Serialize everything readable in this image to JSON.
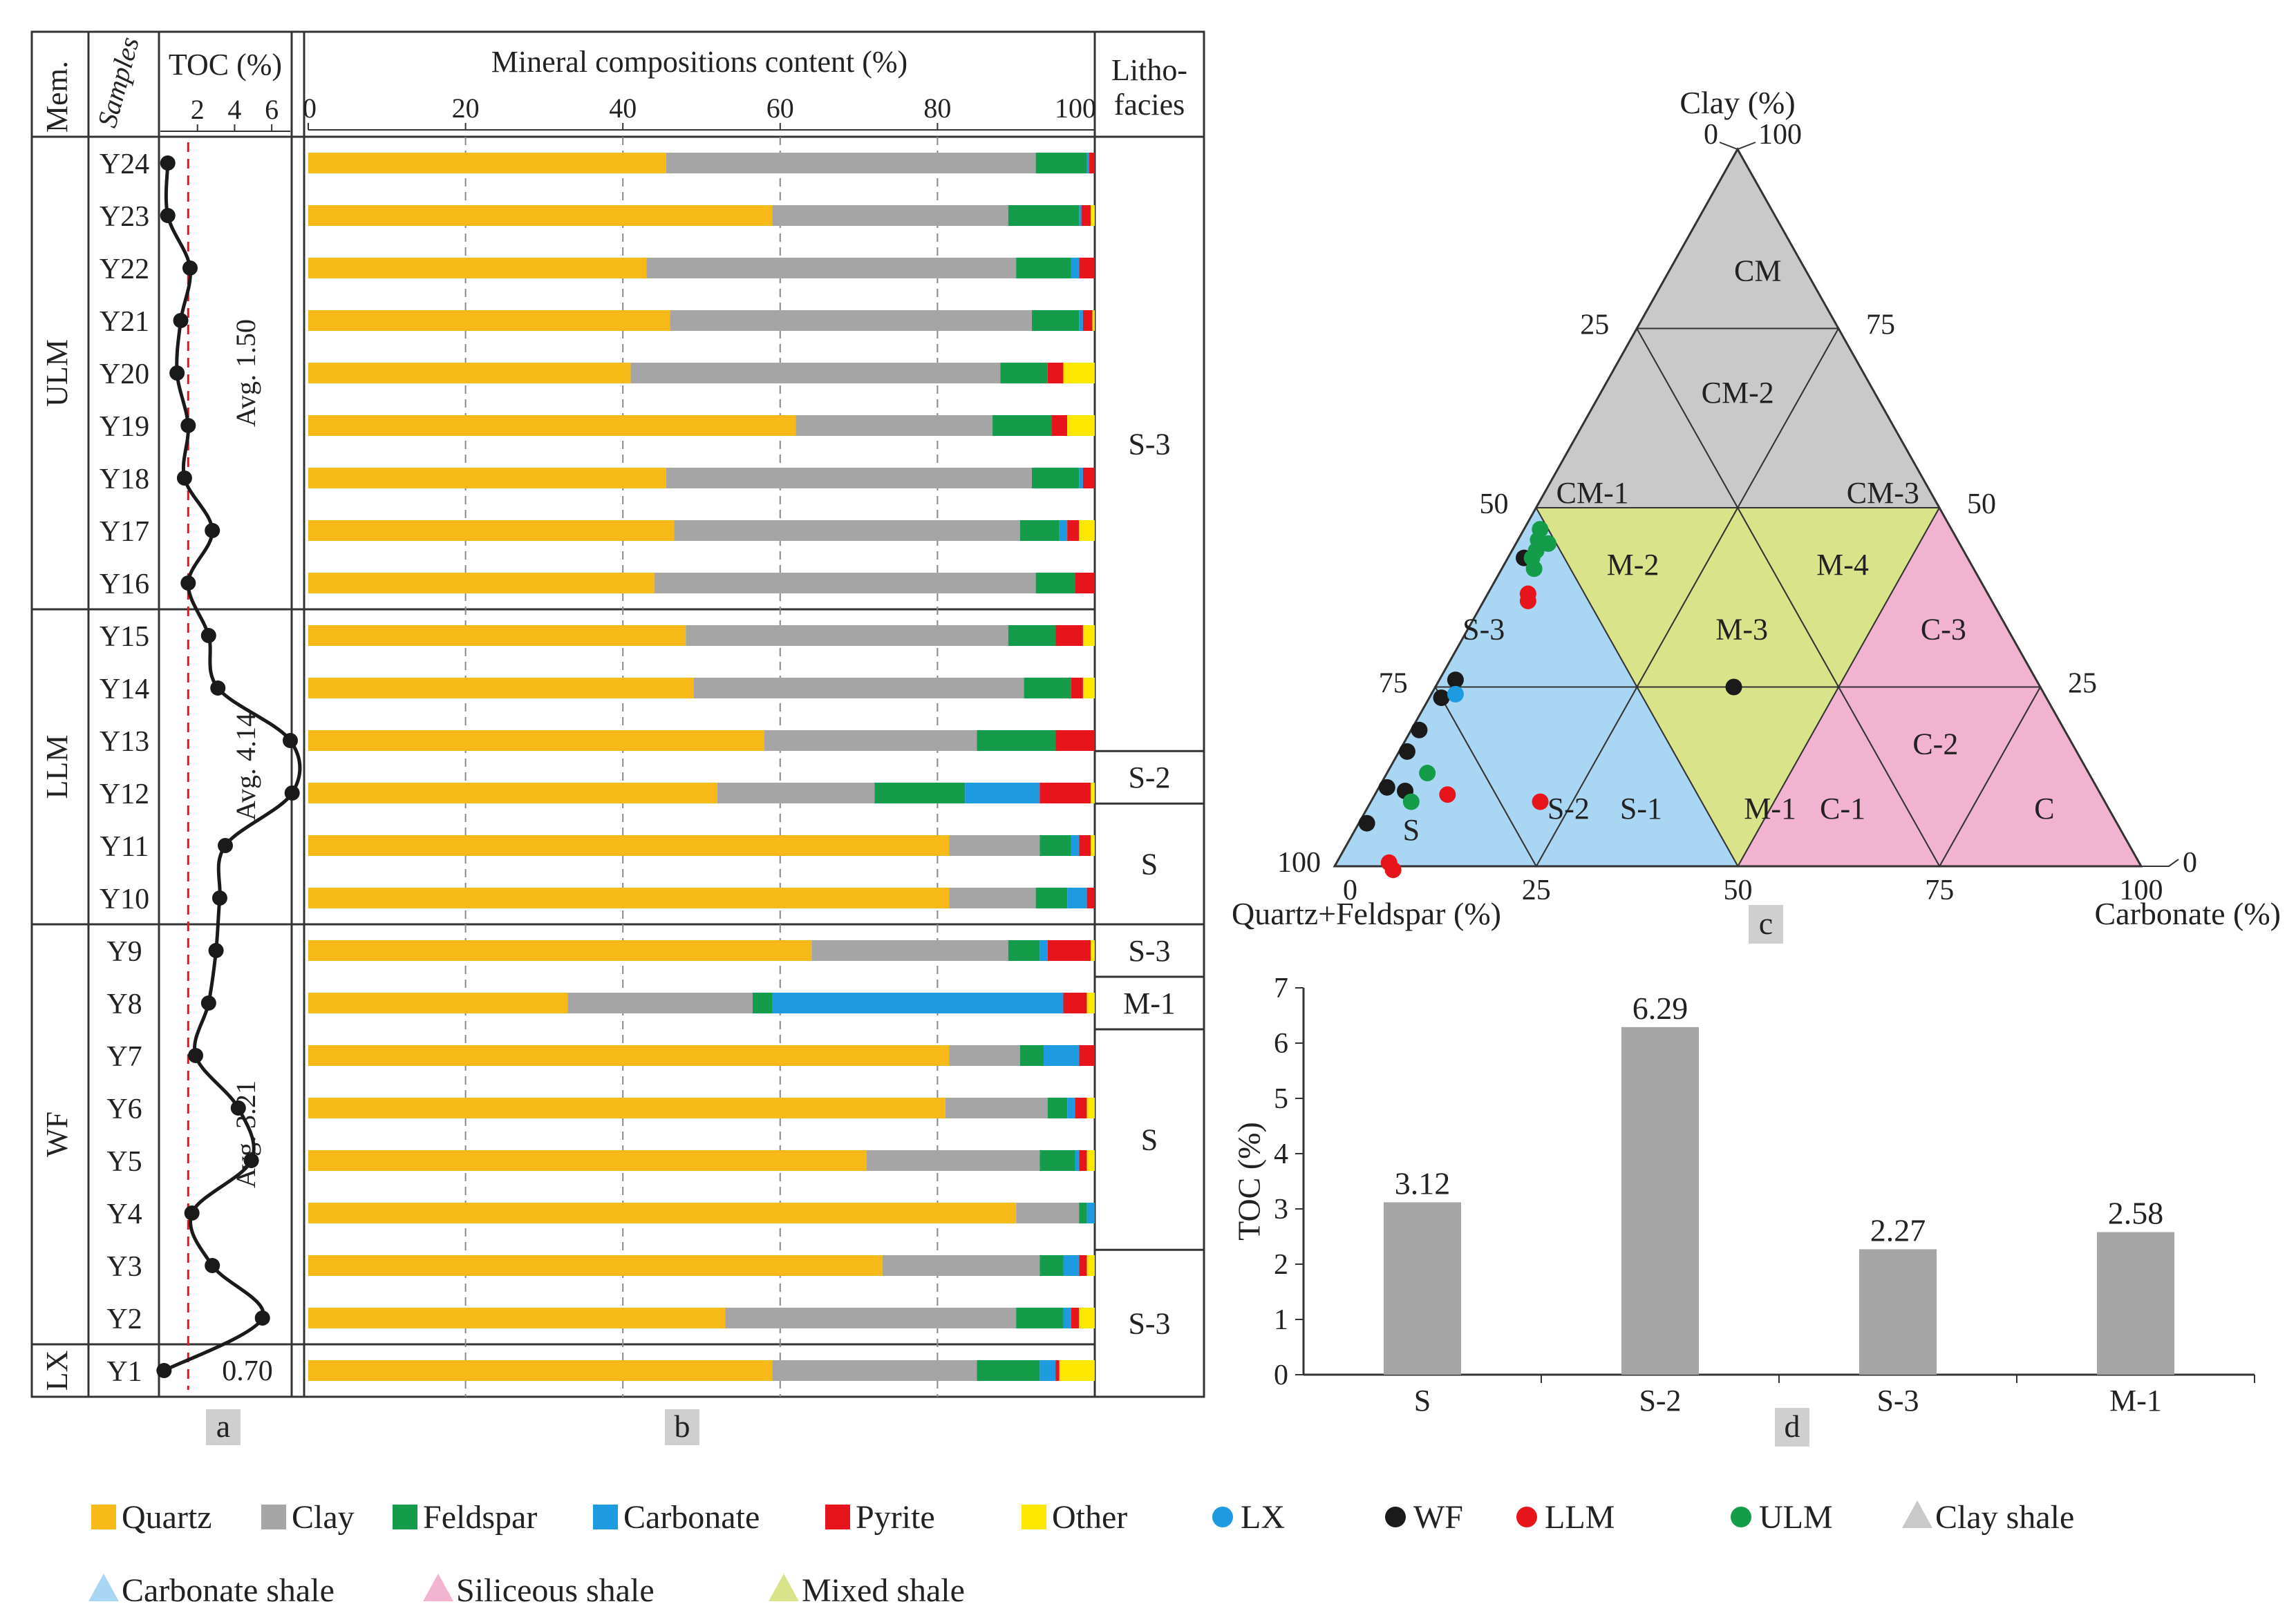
{
  "section_a": {
    "header_member": "Mem.",
    "header_samples": "Samples",
    "header_toc": "TOC (%)",
    "toc_ticks": [
      "2",
      "4",
      "6"
    ],
    "members": [
      {
        "label": "ULM",
        "first": 0,
        "last": 8
      },
      {
        "label": "LLM",
        "first": 9,
        "last": 14
      },
      {
        "label": "WF",
        "first": 15,
        "last": 22
      },
      {
        "label": "LX",
        "first": 23,
        "last": 23
      }
    ],
    "avg_labels": [
      {
        "text": "Avg. 1.50",
        "first": 0,
        "last": 8
      },
      {
        "text": "Avg. 4.14",
        "first": 9,
        "last": 14
      },
      {
        "text": "Avg. 3.21",
        "first": 15,
        "last": 22
      }
    ],
    "lx_value_label": "0.70",
    "dashed_line_toc": 1.5,
    "panel_label": "a"
  },
  "section_b": {
    "header": "Mineral compositions content (%)",
    "x_ticks": [
      "0",
      "20",
      "40",
      "60",
      "80",
      "100"
    ],
    "panel_label": "b"
  },
  "section_litho": {
    "header_line1": "Litho-",
    "header_line2": "facies",
    "groups": [
      {
        "label": "S-3",
        "first": 0,
        "last": 11.7
      },
      {
        "label": "S-2",
        "first": 11.7,
        "last": 12.7
      },
      {
        "label": "S",
        "first": 12.7,
        "last": 15
      },
      {
        "label": "S-3",
        "first": 15,
        "last": 16
      },
      {
        "label": "M-1",
        "first": 16,
        "last": 17
      },
      {
        "label": "S",
        "first": 17,
        "last": 21.2
      },
      {
        "label": "S-3",
        "first": 21.2,
        "last": 24
      }
    ]
  },
  "colors": {
    "quartz": "#f7b918",
    "clay": "#a5a5a5",
    "feldspar": "#159c4b",
    "carbonate": "#1d9ae0",
    "pyrite": "#e8141c",
    "other": "#ffe800",
    "lx": "#1d9ae0",
    "wf": "#1a1a1a",
    "llm": "#e8141c",
    "ulm": "#159c4b",
    "clay_shale": "#c9c9c9",
    "carbonate_shale": "#a9d6f2",
    "siliceous_shale": "#f2b3d0",
    "mixed_shale": "#d9e38a",
    "avg_line": "#e8141c"
  },
  "chart_data": [
    {
      "type": "line",
      "panel": "a",
      "title": "TOC (%)",
      "xlim": [
        0,
        7
      ],
      "x_ticks": [
        2,
        4,
        6
      ],
      "categories": [
        "Y24",
        "Y23",
        "Y22",
        "Y21",
        "Y20",
        "Y19",
        "Y18",
        "Y17",
        "Y16",
        "Y15",
        "Y14",
        "Y13",
        "Y12",
        "Y11",
        "Y10",
        "Y9",
        "Y8",
        "Y7",
        "Y6",
        "Y5",
        "Y4",
        "Y3",
        "Y2",
        "Y1"
      ],
      "values": [
        0.4,
        0.4,
        1.6,
        1.1,
        0.9,
        1.5,
        1.3,
        2.8,
        1.5,
        2.6,
        3.1,
        7.0,
        7.1,
        3.5,
        3.2,
        3.0,
        2.6,
        1.9,
        4.2,
        4.9,
        1.7,
        2.8,
        5.5,
        0.2
      ],
      "avg_values": [
        1.5,
        4.14,
        3.21,
        0.7
      ]
    },
    {
      "type": "bar",
      "panel": "b",
      "orientation": "horizontal",
      "stacked": true,
      "title": "Mineral compositions content (%)",
      "xlim": [
        0,
        100
      ],
      "categories": [
        "Y24",
        "Y23",
        "Y22",
        "Y21",
        "Y20",
        "Y19",
        "Y18",
        "Y17",
        "Y16",
        "Y15",
        "Y14",
        "Y13",
        "Y12",
        "Y11",
        "Y10",
        "Y9",
        "Y8",
        "Y7",
        "Y6",
        "Y5",
        "Y4",
        "Y3",
        "Y2",
        "Y1"
      ],
      "series": [
        {
          "name": "Quartz",
          "values": [
            45.5,
            59,
            43,
            46,
            41,
            62,
            45.5,
            46.5,
            44,
            48,
            49,
            58,
            52,
            81.5,
            81.5,
            64,
            33,
            81.5,
            81,
            71,
            90,
            73,
            53,
            59
          ]
        },
        {
          "name": "Clay",
          "values": [
            47,
            30,
            47,
            46,
            47,
            25,
            46.5,
            44,
            48.5,
            41,
            42,
            27,
            20,
            11.5,
            11,
            25,
            23.5,
            9,
            13,
            22,
            8,
            20,
            37,
            26
          ]
        },
        {
          "name": "Feldspar",
          "values": [
            6.5,
            9,
            7,
            6,
            6,
            7.5,
            6,
            5,
            5,
            6,
            6,
            10,
            11.5,
            4,
            4,
            4,
            2.5,
            3,
            2.5,
            4.5,
            1,
            3,
            6,
            8
          ]
        },
        {
          "name": "Carbonate",
          "values": [
            0.3,
            0.3,
            1,
            0.5,
            0,
            0,
            0.5,
            1,
            0,
            0,
            0,
            0,
            9.5,
            1,
            2.5,
            1,
            37,
            4.5,
            1,
            0.5,
            1,
            2,
            1,
            2
          ]
        },
        {
          "name": "Pyrite",
          "values": [
            0.7,
            1.2,
            2,
            1.2,
            2,
            2,
            1.5,
            1.5,
            2.5,
            3.5,
            1.5,
            5,
            6.5,
            1.5,
            1,
            5.5,
            3,
            2,
            1.5,
            1,
            0,
            1,
            1,
            0.5
          ]
        },
        {
          "name": "Other",
          "values": [
            0,
            0.5,
            0,
            0.3,
            4,
            3.5,
            0,
            2,
            0,
            1.5,
            1.5,
            0,
            0.5,
            0.5,
            0,
            0.5,
            1,
            0,
            1,
            1,
            0,
            1,
            2,
            4.5
          ]
        }
      ]
    },
    {
      "type": "scatter",
      "panel": "c",
      "subtype": "ternary",
      "axes": {
        "top": "Clay (%)",
        "left": "Quartz+Feldspar (%)",
        "right": "Carbonate (%)"
      },
      "edge_ticks": [
        "0",
        "25",
        "50",
        "75",
        "100"
      ],
      "regions": [
        {
          "label": "CM",
          "class": "clay_shale"
        },
        {
          "label": "CM-1",
          "class": "clay_shale"
        },
        {
          "label": "CM-2",
          "class": "clay_shale"
        },
        {
          "label": "CM-3",
          "class": "clay_shale"
        },
        {
          "label": "M-1",
          "class": "mixed_shale"
        },
        {
          "label": "M-2",
          "class": "mixed_shale"
        },
        {
          "label": "M-3",
          "class": "mixed_shale"
        },
        {
          "label": "M-4",
          "class": "mixed_shale"
        },
        {
          "label": "S",
          "class": "carbonate_shale"
        },
        {
          "label": "S-1",
          "class": "carbonate_shale"
        },
        {
          "label": "S-2",
          "class": "carbonate_shale"
        },
        {
          "label": "S-3",
          "class": "carbonate_shale"
        },
        {
          "label": "C",
          "class": "siliceous_shale"
        },
        {
          "label": "C-1",
          "class": "siliceous_shale"
        },
        {
          "label": "C-2",
          "class": "siliceous_shale"
        },
        {
          "label": "C-3",
          "class": "siliceous_shale"
        }
      ],
      "points": [
        {
          "group": "WF",
          "qf": 55,
          "clay": 43,
          "carb": 2
        },
        {
          "group": "WF",
          "qf": 72,
          "clay": 26,
          "carb": 2
        },
        {
          "group": "WF",
          "qf": 75,
          "clay": 23.5,
          "carb": 1.5
        },
        {
          "group": "WF",
          "qf": 80,
          "clay": 19,
          "carb": 1
        },
        {
          "group": "WF",
          "qf": 83,
          "clay": 16,
          "carb": 1
        },
        {
          "group": "WF",
          "qf": 88,
          "clay": 11,
          "carb": 1
        },
        {
          "group": "WF",
          "qf": 86,
          "clay": 10.5,
          "carb": 3.5
        },
        {
          "group": "WF",
          "qf": 93,
          "clay": 6,
          "carb": 1
        },
        {
          "group": "WF",
          "qf": 38,
          "clay": 25,
          "carb": 37
        },
        {
          "group": "LX",
          "qf": 73,
          "clay": 24,
          "carb": 3
        },
        {
          "group": "ULM",
          "qf": 51,
          "clay": 45,
          "carb": 4
        },
        {
          "group": "ULM",
          "qf": 51,
          "clay": 47,
          "carb": 2
        },
        {
          "group": "ULM",
          "qf": 52,
          "clay": 45.5,
          "carb": 2.5
        },
        {
          "group": "ULM",
          "qf": 53,
          "clay": 44,
          "carb": 3
        },
        {
          "group": "ULM",
          "qf": 54,
          "clay": 43,
          "carb": 3
        },
        {
          "group": "ULM",
          "qf": 54.5,
          "clay": 41.5,
          "carb": 4
        },
        {
          "group": "ULM",
          "qf": 82,
          "clay": 13,
          "carb": 5
        },
        {
          "group": "ULM",
          "qf": 86,
          "clay": 9,
          "carb": 5
        },
        {
          "group": "LLM",
          "qf": 57,
          "clay": 38,
          "carb": 5
        },
        {
          "group": "LLM",
          "qf": 57.5,
          "clay": 37,
          "carb": 5.5
        },
        {
          "group": "LLM",
          "qf": 81,
          "clay": 10,
          "carb": 9
        },
        {
          "group": "LLM",
          "qf": 70,
          "clay": 9,
          "carb": 21
        },
        {
          "group": "LLM",
          "qf": 93,
          "clay": 0.5,
          "carb": 6.5
        },
        {
          "group": "LLM",
          "qf": 93,
          "clay": -0.5,
          "carb": 7.5
        }
      ],
      "panel_label": "c"
    },
    {
      "type": "bar",
      "panel": "d",
      "categories": [
        "S",
        "S-2",
        "S-3",
        "M-1"
      ],
      "values": [
        3.12,
        6.29,
        2.27,
        2.58
      ],
      "data_labels": [
        "3.12",
        "6.29",
        "2.27",
        "2.58"
      ],
      "ylabel": "TOC (%)",
      "xlabel": "",
      "ylim": [
        0,
        7
      ],
      "y_ticks": [
        "0",
        "1",
        "2",
        "3",
        "4",
        "5",
        "6",
        "7"
      ],
      "panel_label": "d"
    }
  ],
  "legend": [
    {
      "label": "Quartz",
      "marker": "square",
      "color_key": "quartz"
    },
    {
      "label": "Clay",
      "marker": "square",
      "color_key": "clay"
    },
    {
      "label": "Feldspar",
      "marker": "square",
      "color_key": "feldspar"
    },
    {
      "label": "Carbonate",
      "marker": "square",
      "color_key": "carbonate"
    },
    {
      "label": "Pyrite",
      "marker": "square",
      "color_key": "pyrite"
    },
    {
      "label": "Other",
      "marker": "square",
      "color_key": "other"
    },
    {
      "label": "LX",
      "marker": "circle",
      "color_key": "lx"
    },
    {
      "label": "WF",
      "marker": "circle",
      "color_key": "wf"
    },
    {
      "label": "LLM",
      "marker": "circle",
      "color_key": "llm"
    },
    {
      "label": "ULM",
      "marker": "circle",
      "color_key": "ulm"
    },
    {
      "label": "Clay shale",
      "marker": "triangle",
      "color_key": "clay_shale"
    },
    {
      "label": "Carbonate shale",
      "marker": "triangle",
      "color_key": "carbonate_shale"
    },
    {
      "label": "Siliceous shale",
      "marker": "triangle",
      "color_key": "siliceous_shale"
    },
    {
      "label": "Mixed shale",
      "marker": "triangle",
      "color_key": "mixed_shale"
    }
  ]
}
